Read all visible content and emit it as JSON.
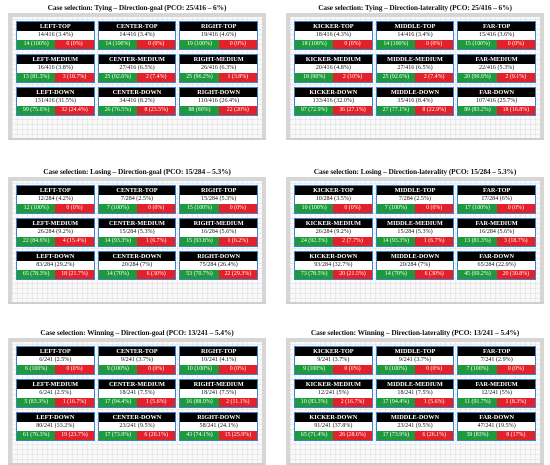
{
  "colors": {
    "success": "#1e9a3c",
    "fail": "#e3212a",
    "zone_border": "#3a84c8",
    "header_bg": "#000000"
  },
  "chart_data": [
    {
      "type": "table",
      "title": "Case selection: Tying – Direction-goal (PCO: 25/416 – 6%)",
      "zones": [
        {
          "name": "LEFT-TOP",
          "total": "14/416 (3.4%)",
          "success": "14 (100%)",
          "fail": "0 (0%)"
        },
        {
          "name": "CENTER-TOP",
          "total": "14/416 (3.4%)",
          "success": "14 (100%)",
          "fail": "0 (0%)"
        },
        {
          "name": "RIGHT-TOP",
          "total": "19/416 (4.6%)",
          "success": "19 (100%)",
          "fail": "0 (0%)"
        },
        {
          "name": "LEFT-MEDIUM",
          "total": "16/416 (3.8%)",
          "success": "13 (81.3%)",
          "fail": "3 (18.7%)"
        },
        {
          "name": "CENTER-MEDIUM",
          "total": "27/416 (6.5%)",
          "success": "25 (92.6%)",
          "fail": "2 (7.4%)"
        },
        {
          "name": "RIGHT-MEDIUM",
          "total": "26/416 (6.3%)",
          "success": "25 (96.2%)",
          "fail": "1 (3.8%)"
        },
        {
          "name": "LEFT-DOWN",
          "total": "131/416 (31.5%)",
          "success": "99 (75.6%)",
          "fail": "32 (24.4%)"
        },
        {
          "name": "CENTER-DOWN",
          "total": "34/416 (8.2%)",
          "success": "26 (76.5%)",
          "fail": "8 (23.5%)"
        },
        {
          "name": "RIGHT-DOWN",
          "total": "110/416 (26.4%)",
          "success": "88 (80%)",
          "fail": "22 (20%)"
        }
      ]
    },
    {
      "type": "table",
      "title": "Case selection: Tying – Direction-laterality (PCO: 25/416 – 6%)",
      "zones": [
        {
          "name": "KICKER-TOP",
          "total": "18/416 (4.3%)",
          "success": "18 (100%)",
          "fail": "0 (0%)"
        },
        {
          "name": "MIDDLE-TOP",
          "total": "14/416 (3.4%)",
          "success": "14 (100%)",
          "fail": "0 (0%)"
        },
        {
          "name": "FAR-TOP",
          "total": "15/416 (3.6%)",
          "success": "15 (100%)",
          "fail": "0 (0%)"
        },
        {
          "name": "KICKER-MEDIUM",
          "total": "20/416 (4.8%)",
          "success": "18 (90%)",
          "fail": "2 (10%)"
        },
        {
          "name": "MIDDLE-MEDIUM",
          "total": "27/416 (6.5%)",
          "success": "25 (92.6%)",
          "fail": "2 (7.4%)"
        },
        {
          "name": "FAR-MEDIUM",
          "total": "22/416 (5.3%)",
          "success": "20 (90.9%)",
          "fail": "2 (9.1%)"
        },
        {
          "name": "KICKER-DOWN",
          "total": "133/416 (32.0%)",
          "success": "97 (72.9%)",
          "fail": "36 (27.1%)"
        },
        {
          "name": "MIDDLE-DOWN",
          "total": "35/416 (8.4%)",
          "success": "27 (77.1%)",
          "fail": "8 (22.9%)"
        },
        {
          "name": "FAR-DOWN",
          "total": "107/416 (25.7%)",
          "success": "89 (83.2%)",
          "fail": "18 (16.8%)"
        }
      ]
    },
    {
      "type": "table",
      "title": "Case selection: Losing – Direction-goal (PCO: 15/284 – 5.3%)",
      "zones": [
        {
          "name": "LEFT-TOP",
          "total": "12/284 (4.2%)",
          "success": "12 (100%)",
          "fail": "0 (0%)"
        },
        {
          "name": "CENTER-TOP",
          "total": "7/284 (2.5%)",
          "success": "7 (100%)",
          "fail": "0 (0%)"
        },
        {
          "name": "RIGHT-TOP",
          "total": "15/284 (5.3%)",
          "success": "15 (100%)",
          "fail": "0 (0%)"
        },
        {
          "name": "LEFT-MEDIUM",
          "total": "26/284 (9.2%)",
          "success": "22 (84.6%)",
          "fail": "4 (15.4%)"
        },
        {
          "name": "CENTER-MEDIUM",
          "total": "15/284 (5.3%)",
          "success": "14 (93.3%)",
          "fail": "1 (6.7%)"
        },
        {
          "name": "RIGHT-MEDIUM",
          "total": "16/284 (5.6%)",
          "success": "15 (93.8%)",
          "fail": "1 (6.2%)"
        },
        {
          "name": "LEFT-DOWN",
          "total": "83/284 (29.2%)",
          "success": "65 (78.3%)",
          "fail": "18 (21.7%)"
        },
        {
          "name": "CENTER-DOWN",
          "total": "20/284 (7%)",
          "success": "14 (70%)",
          "fail": "6 (30%)"
        },
        {
          "name": "RIGHT-DOWN",
          "total": "75/284 (26.4%)",
          "success": "53 (70.7%)",
          "fail": "22 (29.3%)"
        }
      ]
    },
    {
      "type": "table",
      "title": "Case selection: Losing – Direction-laterality (PCO: 15/284 – 5.3%)",
      "zones": [
        {
          "name": "KICKER-TOP",
          "total": "10/284 (3.5%)",
          "success": "10 (100%)",
          "fail": "0 (0%)"
        },
        {
          "name": "MIDDLE-TOP",
          "total": "7/284 (2.5%)",
          "success": "7 (100%)",
          "fail": "0 (0%)"
        },
        {
          "name": "FAR-TOP",
          "total": "17/284 (6%)",
          "success": "17 (100%)",
          "fail": "0 (0%)"
        },
        {
          "name": "KICKER-MEDIUM",
          "total": "26/284 (9.2%)",
          "success": "24 (92.3%)",
          "fail": "2 (7.7%)"
        },
        {
          "name": "MIDDLE-MEDIUM",
          "total": "15/284 (5.3%)",
          "success": "14 (93.3%)",
          "fail": "1 (6.7%)"
        },
        {
          "name": "FAR-MEDIUM",
          "total": "16/284 (5.6%)",
          "success": "13 (81.3%)",
          "fail": "3 (18.7%)"
        },
        {
          "name": "KICKER-DOWN",
          "total": "93/284 (32.7%)",
          "success": "73 (78.5%)",
          "fail": "20 (21.5%)"
        },
        {
          "name": "MIDDLE-DOWN",
          "total": "20/284 (7%)",
          "success": "14 (70%)",
          "fail": "6 (30%)"
        },
        {
          "name": "FAR-DOWN",
          "total": "65/284 (22.9%)",
          "success": "45 (69.2%)",
          "fail": "20 (30.8%)"
        }
      ]
    },
    {
      "type": "table",
      "title": "Case selection: Winning – Direction-goal (PCO: 13/241 – 5.4%)",
      "zones": [
        {
          "name": "LEFT-TOP",
          "total": "6/241 (2.5%)",
          "success": "6 (100%)",
          "fail": "0 (0%)"
        },
        {
          "name": "CENTER-TOP",
          "total": "9/241 (3.7%)",
          "success": "9 (100%)",
          "fail": "0 (0%)"
        },
        {
          "name": "RIGHT-TOP",
          "total": "10/241 (4.1%)",
          "success": "10 (100%)",
          "fail": "0 (0%)"
        },
        {
          "name": "LEFT-MEDIUM",
          "total": "6/241 (2.5%)",
          "success": "5 (83.3%)",
          "fail": "1 (16.7%)"
        },
        {
          "name": "CENTER-MEDIUM",
          "total": "18/241 (7.5%)",
          "success": "17 (94.4%)",
          "fail": "1 (5.6%)"
        },
        {
          "name": "RIGHT-MEDIUM",
          "total": "18/241 (7.5%)",
          "success": "16 (88.9%)",
          "fail": "2 (11.1%)"
        },
        {
          "name": "LEFT-DOWN",
          "total": "80/241 (33.2%)",
          "success": "61 (76.3%)",
          "fail": "19 (23.7%)"
        },
        {
          "name": "CENTER-DOWN",
          "total": "23/241 (9.5%)",
          "success": "17 (73.9%)",
          "fail": "6 (26.1%)"
        },
        {
          "name": "RIGHT-DOWN",
          "total": "58/241 (24.1%)",
          "success": "43 (74.1%)",
          "fail": "15 (25.9%)"
        }
      ]
    },
    {
      "type": "table",
      "title": "Case selection: Winning – Direction-laterality (PCO: 13/241 – 5.4%)",
      "zones": [
        {
          "name": "KICKER-TOP",
          "total": "9/241 (3.7%)",
          "success": "9 (100%)",
          "fail": "0 (0%)"
        },
        {
          "name": "MIDDLE-TOP",
          "total": "9/241 (3.7%)",
          "success": "9 (100%)",
          "fail": "0 (0%)"
        },
        {
          "name": "FAR-TOP",
          "total": "7/241 (2.9%)",
          "success": "7 (100%)",
          "fail": "0 (0%)"
        },
        {
          "name": "KICKER-MEDIUM",
          "total": "12/241 (5%)",
          "success": "10 (83.3%)",
          "fail": "2 (16.7%)"
        },
        {
          "name": "MIDDLE-MEDIUM",
          "total": "18/241 (7.5%)",
          "success": "17 (94.4%)",
          "fail": "1 (5.6%)"
        },
        {
          "name": "FAR-MEDIUM",
          "total": "12/241 (5%)",
          "success": "11 (91.7%)",
          "fail": "1 (8.3%)"
        },
        {
          "name": "KICKER-DOWN",
          "total": "91/241 (37.8%)",
          "success": "65 (71.4%)",
          "fail": "26 (28.6%)"
        },
        {
          "name": "MIDDLE-DOWN",
          "total": "23/241 (9.5%)",
          "success": "17 (73.9%)",
          "fail": "6 (26.1%)"
        },
        {
          "name": "FAR-DOWN",
          "total": "47/241 (19.5%)",
          "success": "39 (83%)",
          "fail": "8 (17%)"
        }
      ]
    }
  ]
}
